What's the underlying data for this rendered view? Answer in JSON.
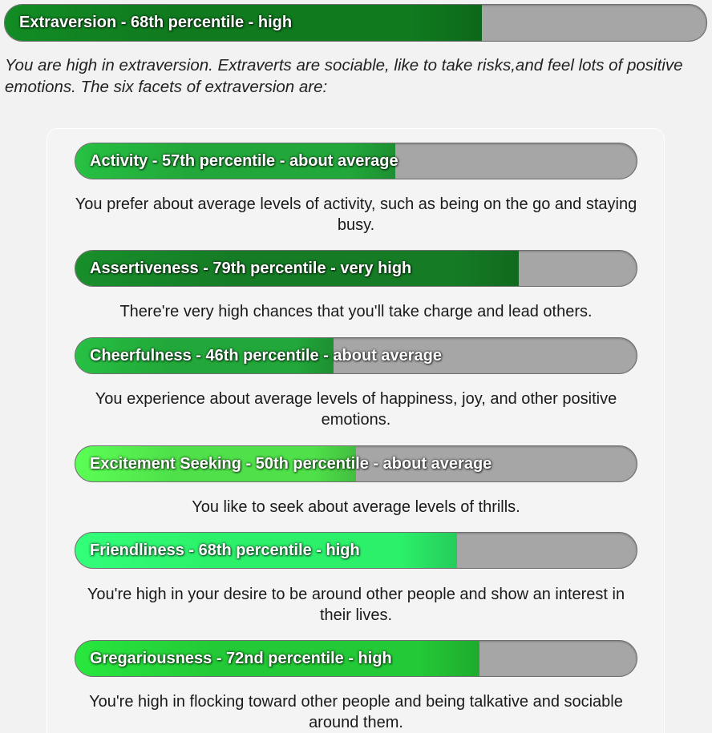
{
  "trait": {
    "label": "Extraversion - 68th percentile - high",
    "percentile": 68,
    "fill_color": "#107a1f"
  },
  "intro_text": "You are high in extraversion. Extraverts are sociable, like to take risks,and feel lots of positive emotions. The six facets of extraversion are:",
  "facets": [
    {
      "label": "Activity - 57th percentile - about average",
      "percentile": 57,
      "fill_color": "#22a83a",
      "description": "You prefer about average levels of activity, such as being on the go and staying busy."
    },
    {
      "label": "Assertiveness - 79th percentile - very high",
      "percentile": 79,
      "fill_color": "#157c25",
      "description": "There're very high chances that you'll take charge and lead others."
    },
    {
      "label": "Cheerfulness - 46th percentile - about average",
      "percentile": 46,
      "fill_color": "#22a83a",
      "description": "You experience about average levels of happiness, joy, and other positive emotions."
    },
    {
      "label": "Excitement Seeking - 50th percentile - about average",
      "percentile": 50,
      "fill_color": "#4fe04a",
      "description": "You like to seek about average levels of thrills."
    },
    {
      "label": "Friendliness - 68th percentile - high",
      "percentile": 68,
      "fill_color": "#2cf06a",
      "description": "You're high in your desire to be around other people and show an interest in their lives."
    },
    {
      "label": "Gregariousness - 72nd percentile - high",
      "percentile": 72,
      "fill_color": "#23c936",
      "description": "You're high in flocking toward other people and being talkative and sociable around them."
    }
  ]
}
